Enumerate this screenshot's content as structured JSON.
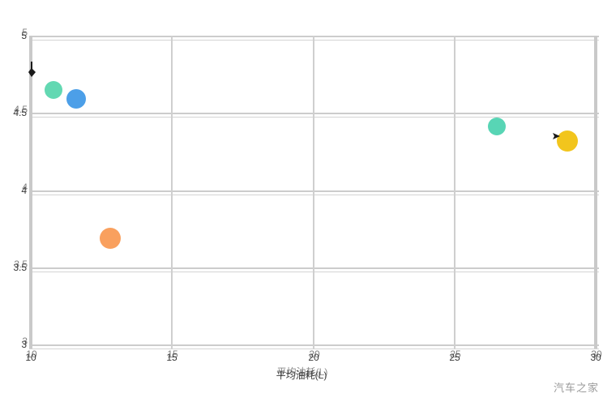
{
  "chart_data": {
    "type": "scatter",
    "title": "",
    "xlabel": "平均油耗(L)",
    "ylabel": "",
    "xlim": [
      10,
      30
    ],
    "ylim": [
      3,
      5
    ],
    "x_ticks": [
      10,
      15,
      20,
      25,
      30
    ],
    "y_ticks": [
      5,
      4.5,
      4,
      3.5,
      3
    ],
    "grid": "both",
    "legend": "none",
    "points": [
      {
        "x": 10.8,
        "y": 4.65,
        "r": 11,
        "color": "#63D8B2",
        "name": "bubble-mint-left"
      },
      {
        "x": 11.6,
        "y": 4.59,
        "r": 12,
        "color": "#4C9FE8",
        "name": "bubble-blue"
      },
      {
        "x": 12.8,
        "y": 3.69,
        "r": 13,
        "color": "#F9A05E",
        "name": "bubble-orange"
      },
      {
        "x": 26.5,
        "y": 4.41,
        "r": 11,
        "color": "#58D5B5",
        "name": "bubble-mint-right"
      },
      {
        "x": 29.0,
        "y": 4.32,
        "r": 13,
        "color": "#F2C51D",
        "name": "bubble-gold"
      }
    ]
  },
  "watermark": {
    "text": "汽车之家"
  },
  "colors": {
    "background": "#FFFFFF",
    "gridline": "#CCCCCC",
    "axis_band": "#C9C9C9",
    "tick_text": "#3A3A3A",
    "watermark_text": "#9A9A9A"
  }
}
